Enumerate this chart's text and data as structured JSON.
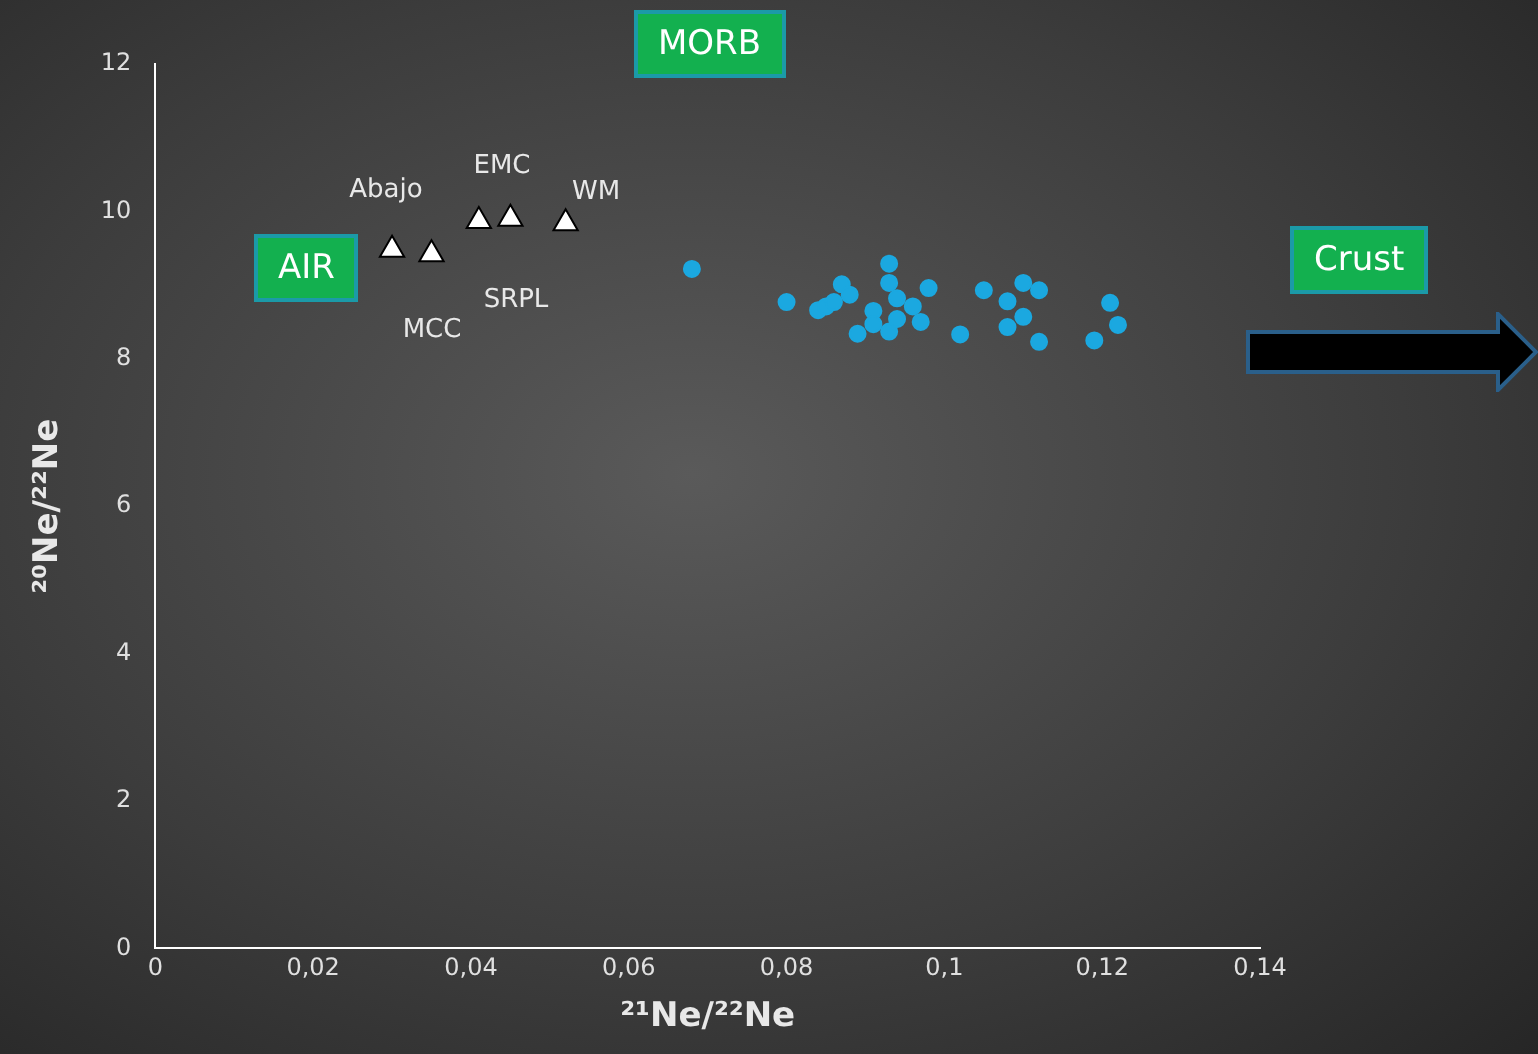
{
  "chart_data": {
    "type": "scatter",
    "xlabel": "²¹Ne/²²Ne",
    "ylabel": "²⁰Ne/²²Ne",
    "xlim": [
      0,
      0.14
    ],
    "xticks": [
      {
        "value": 0,
        "label": "0"
      },
      {
        "value": 0.02,
        "label": "0,02"
      },
      {
        "value": 0.04,
        "label": "0,04"
      },
      {
        "value": 0.06,
        "label": "0,06"
      },
      {
        "value": 0.08,
        "label": "0,08"
      },
      {
        "value": 0.1,
        "label": "0,1"
      },
      {
        "value": 0.12,
        "label": "0,12"
      },
      {
        "value": 0.14,
        "label": "0,14"
      }
    ],
    "ylim": [
      0,
      12
    ],
    "yticks": [
      0,
      2,
      4,
      6,
      8,
      10,
      12
    ],
    "grid": false,
    "legend": false,
    "series": [
      {
        "color": "#ffffff",
        "marker": "triangle",
        "x": [
          0.03,
          0.035,
          0.041,
          0.045,
          0.052
        ],
        "values": [
          9.48,
          9.42,
          9.87,
          9.9,
          9.84
        ]
      },
      {
        "color": "#1ba8e0",
        "marker": "circle",
        "x": [
          0.068,
          0.08,
          0.084,
          0.085,
          0.086,
          0.087,
          0.088,
          0.089,
          0.091,
          0.091,
          0.093,
          0.093,
          0.093,
          0.094,
          0.094,
          0.096,
          0.098,
          0.097,
          0.102,
          0.105,
          0.108,
          0.108,
          0.11,
          0.11,
          0.112,
          0.112,
          0.119,
          0.121,
          0.122
        ],
        "values": [
          9.22,
          8.77,
          8.66,
          8.71,
          8.77,
          9.01,
          8.87,
          8.34,
          8.65,
          8.47,
          9.29,
          9.03,
          8.37,
          8.82,
          8.54,
          8.71,
          8.96,
          8.5,
          8.33,
          8.93,
          8.78,
          8.43,
          8.57,
          9.03,
          8.93,
          8.23,
          8.25,
          8.76,
          8.46
        ]
      }
    ],
    "annotations": [
      "Abajo",
      "EMC",
      "WM",
      "MCC",
      "SRPL",
      "AIR",
      "MORB",
      "Crust"
    ]
  }
}
